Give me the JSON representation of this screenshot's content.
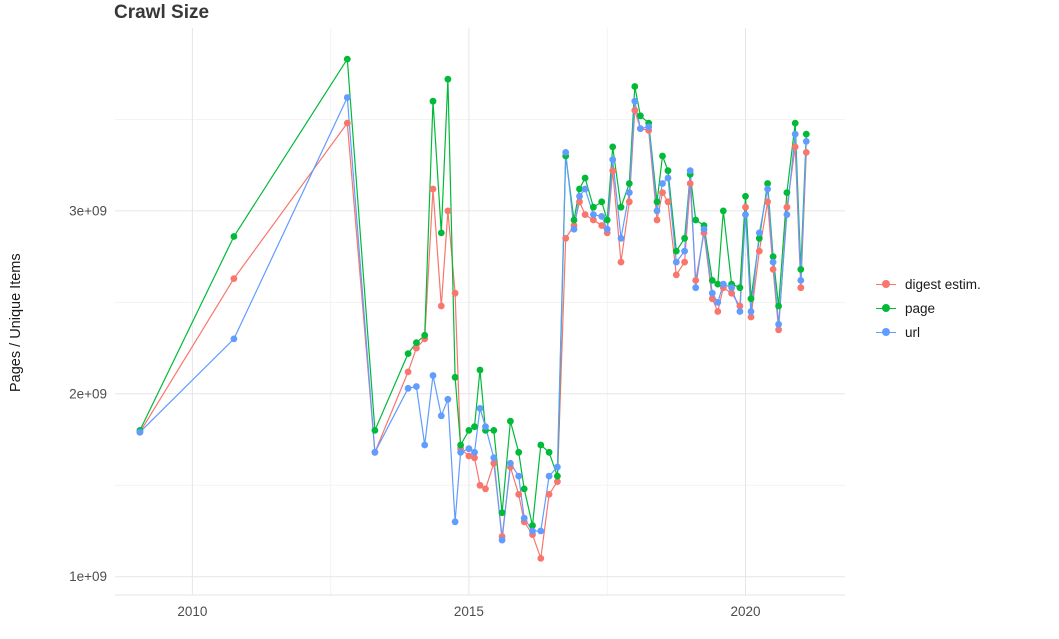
{
  "chart_data": {
    "type": "line",
    "title": "Crawl Size",
    "xlabel": "",
    "ylabel": "Pages / Unique Items",
    "grid": true,
    "legend_position": "right",
    "x_ticks": [
      "2010",
      "2015",
      "2020"
    ],
    "x_tick_values": [
      2010,
      2015,
      2020
    ],
    "x_minor": [
      2012.5,
      2017.5
    ],
    "y_ticks": [
      "1e+09",
      "2e+09",
      "3e+09"
    ],
    "y_tick_values": [
      1,
      2,
      3
    ],
    "y_minor": [
      1.5,
      2.5,
      3.5
    ],
    "x_range": [
      2008.6,
      2021.8
    ],
    "y_range_billions": [
      0.9,
      4.0
    ],
    "values_unit": "billions of pages (1e9)",
    "x": [
      2009.05,
      2010.75,
      2012.8,
      2013.3,
      2013.9,
      2014.05,
      2014.2,
      2014.35,
      2014.5,
      2014.62,
      2014.75,
      2014.85,
      2015.0,
      2015.1,
      2015.2,
      2015.3,
      2015.45,
      2015.6,
      2015.75,
      2015.9,
      2016.0,
      2016.15,
      2016.3,
      2016.45,
      2016.6,
      2016.75,
      2016.9,
      2017.0,
      2017.1,
      2017.25,
      2017.4,
      2017.5,
      2017.6,
      2017.75,
      2017.9,
      2018.0,
      2018.1,
      2018.25,
      2018.4,
      2018.5,
      2018.6,
      2018.75,
      2018.9,
      2019.0,
      2019.1,
      2019.25,
      2019.4,
      2019.5,
      2019.6,
      2019.75,
      2019.9,
      2020.0,
      2020.1,
      2020.25,
      2020.4,
      2020.5,
      2020.6,
      2020.75,
      2020.9,
      2021.0,
      2021.1
    ],
    "series": [
      {
        "name": "digest estim.",
        "color": "#F8766D",
        "values": [
          1.79,
          2.63,
          3.48,
          1.68,
          2.12,
          2.25,
          2.3,
          3.12,
          2.48,
          3.0,
          2.55,
          1.7,
          1.66,
          1.65,
          1.5,
          1.48,
          1.62,
          1.22,
          1.6,
          1.45,
          1.3,
          1.23,
          1.1,
          1.45,
          1.52,
          2.85,
          2.92,
          3.05,
          2.98,
          2.95,
          2.92,
          2.88,
          3.22,
          2.72,
          3.05,
          3.55,
          3.45,
          3.44,
          2.95,
          3.1,
          3.05,
          2.65,
          2.72,
          3.15,
          2.62,
          2.88,
          2.52,
          2.45,
          2.58,
          2.55,
          2.48,
          3.02,
          2.42,
          2.78,
          3.05,
          2.68,
          2.35,
          3.02,
          3.35,
          2.58,
          3.32
        ]
      },
      {
        "name": "page",
        "color": "#00BA38",
        "values": [
          1.8,
          2.86,
          3.83,
          1.8,
          2.22,
          2.28,
          2.32,
          3.6,
          2.88,
          3.72,
          2.09,
          1.72,
          1.8,
          1.82,
          2.13,
          1.8,
          1.8,
          1.35,
          1.85,
          1.68,
          1.48,
          1.28,
          1.72,
          1.68,
          1.55,
          3.3,
          2.95,
          3.12,
          3.18,
          3.02,
          3.05,
          2.95,
          3.35,
          3.02,
          3.15,
          3.68,
          3.52,
          3.48,
          3.05,
          3.3,
          3.22,
          2.78,
          2.85,
          3.2,
          2.95,
          2.92,
          2.62,
          2.6,
          3.0,
          2.6,
          2.58,
          3.08,
          2.52,
          2.85,
          3.15,
          2.75,
          2.48,
          3.1,
          3.48,
          2.68,
          3.42
        ]
      },
      {
        "name": "url",
        "color": "#619CFF",
        "values": [
          1.79,
          2.3,
          3.62,
          1.68,
          2.03,
          2.04,
          1.72,
          2.1,
          1.88,
          1.97,
          1.3,
          1.68,
          1.7,
          1.68,
          1.92,
          1.82,
          1.65,
          1.2,
          1.62,
          1.55,
          1.32,
          1.25,
          1.25,
          1.55,
          1.6,
          3.32,
          2.9,
          3.08,
          3.12,
          2.98,
          2.97,
          2.9,
          3.28,
          2.85,
          3.1,
          3.6,
          3.45,
          3.46,
          3.0,
          3.15,
          3.18,
          2.72,
          2.78,
          3.22,
          2.58,
          2.9,
          2.55,
          2.5,
          2.6,
          2.58,
          2.45,
          2.98,
          2.45,
          2.88,
          3.12,
          2.72,
          2.38,
          2.98,
          3.42,
          2.62,
          3.38
        ]
      }
    ]
  }
}
